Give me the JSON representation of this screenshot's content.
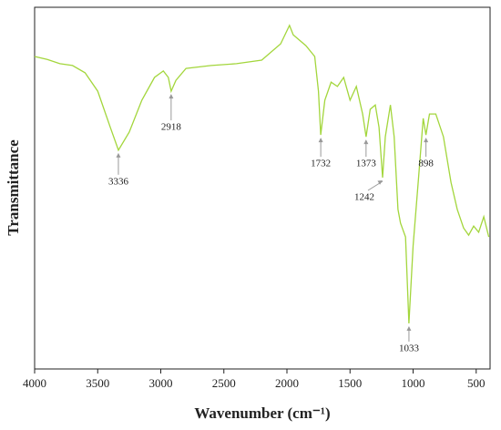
{
  "chart_data": {
    "type": "line",
    "x_label": "Wavenumber (cm⁻¹)",
    "y_label": "Transmittance",
    "x": [
      4000,
      3900,
      3800,
      3700,
      3600,
      3500,
      3400,
      3336,
      3250,
      3150,
      3050,
      2980,
      2940,
      2918,
      2880,
      2800,
      2600,
      2400,
      2200,
      2050,
      1980,
      1950,
      1850,
      1780,
      1750,
      1732,
      1700,
      1650,
      1600,
      1550,
      1500,
      1450,
      1400,
      1373,
      1340,
      1300,
      1270,
      1242,
      1220,
      1180,
      1150,
      1120,
      1100,
      1060,
      1033,
      1000,
      960,
      920,
      898,
      870,
      820,
      760,
      700,
      650,
      600,
      560,
      520,
      480,
      440,
      400
    ],
    "series": [
      {
        "color": "#a3d63c",
        "values": [
          86.4,
          85.6,
          84.4,
          83.9,
          81.9,
          76.8,
          66.8,
          60.5,
          65.5,
          74.3,
          80.6,
          82.4,
          80.6,
          76.8,
          79.8,
          83.1,
          83.9,
          84.4,
          85.4,
          89.9,
          95.0,
          92.4,
          89.4,
          86.4,
          76.8,
          64.7,
          74.3,
          79.3,
          78.1,
          80.6,
          74.3,
          78.1,
          70.5,
          64.2,
          71.8,
          73.0,
          66.8,
          52.9,
          64.2,
          73.0,
          64.2,
          44.1,
          40.3,
          36.5,
          12.6,
          34.0,
          51.6,
          69.3,
          64.7,
          70.5,
          70.5,
          64.2,
          51.6,
          44.1,
          39.0,
          37.0,
          39.5,
          37.8,
          42.1,
          36.5
        ]
      }
    ],
    "peaks": [
      3336,
      2918,
      1732,
      1373,
      1242,
      1033,
      898
    ],
    "xlim": [
      4000,
      390
    ],
    "ylim": [
      0,
      100
    ],
    "xticks": [
      4000,
      3500,
      3000,
      2500,
      2000,
      1500,
      1000,
      500
    ]
  }
}
